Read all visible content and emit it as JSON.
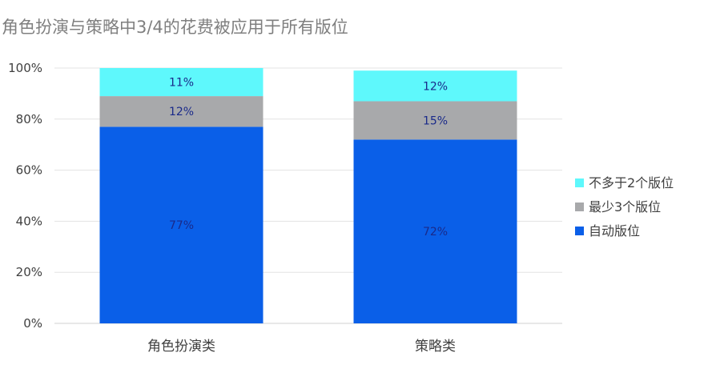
{
  "chart_data": {
    "type": "bar",
    "stacked": true,
    "percent_stacked": true,
    "title": "角色扮演与策略中3/4的花费被应用于所有版位",
    "categories": [
      "角色扮演类",
      "策略类"
    ],
    "series": [
      {
        "name": "自动版位",
        "values": [
          77,
          72
        ],
        "labels": [
          "77%",
          "72%"
        ],
        "color": "#0a5fe8",
        "label_color": "#1a2a8a"
      },
      {
        "name": "最少3个版位",
        "values": [
          12,
          15
        ],
        "labels": [
          "12%",
          "15%"
        ],
        "color": "#a8a9ab",
        "label_color": "#1a2a8a"
      },
      {
        "name": "不多于2个版位",
        "values": [
          11,
          12
        ],
        "labels": [
          "11%",
          "12%"
        ],
        "color": "#5ef8fc",
        "label_color": "#1a2a8a"
      }
    ],
    "y_ticks": [
      "0%",
      "20%",
      "40%",
      "60%",
      "80%",
      "100%"
    ],
    "ylim": [
      0,
      100
    ],
    "grid": true,
    "legend_position": "right",
    "legend_order": [
      "不多于2个版位",
      "最少3个版位",
      "自动版位"
    ]
  }
}
